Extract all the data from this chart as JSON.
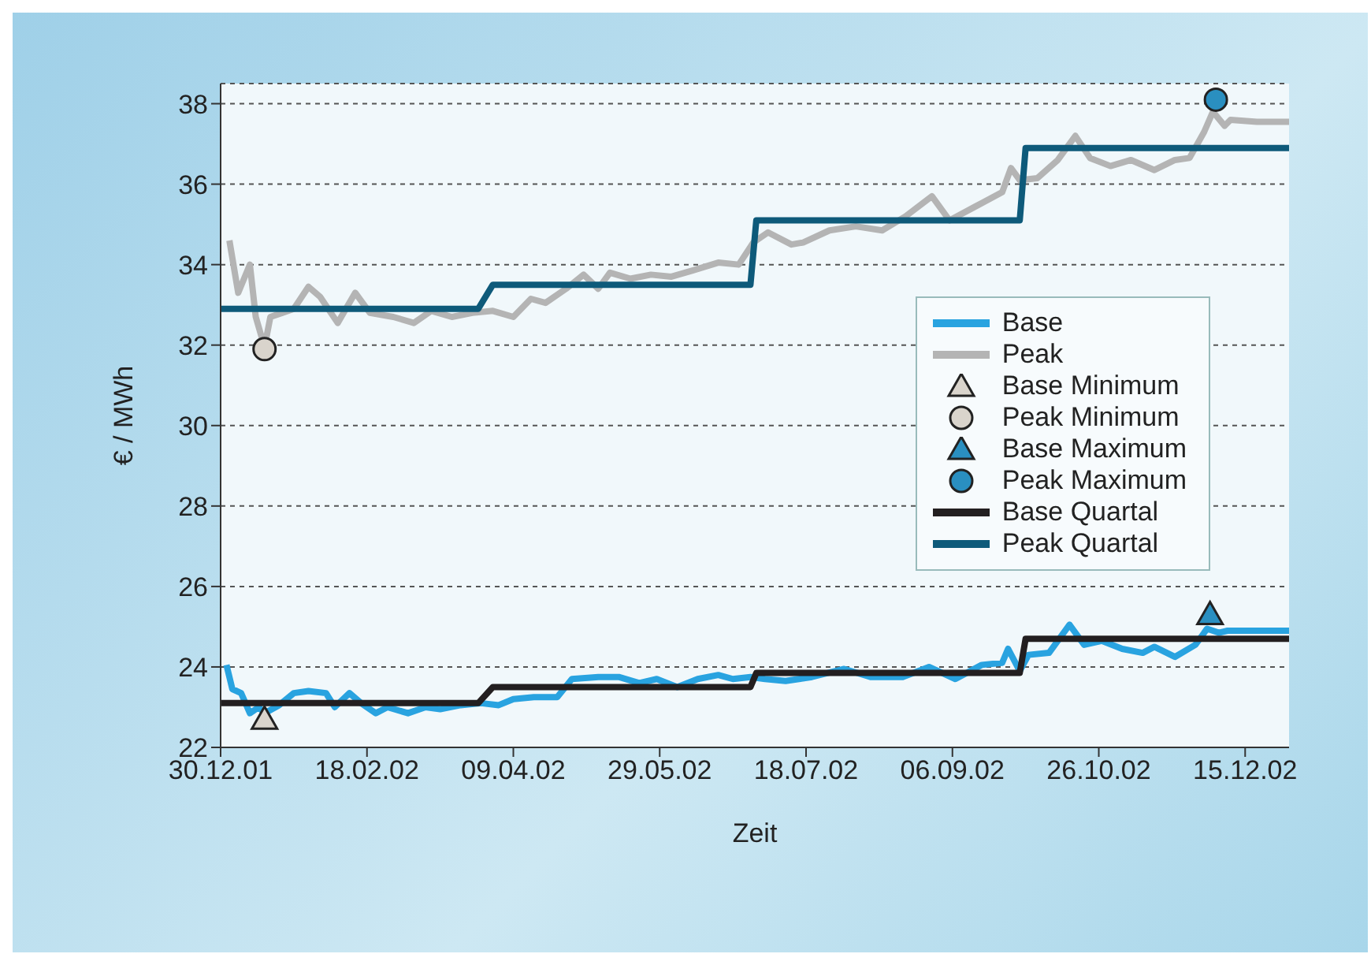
{
  "chart_data": {
    "type": "line",
    "xlabel": "Zeit",
    "ylabel": "€ / MWh",
    "xlim": [
      "2001-12-30",
      "2002-12-30"
    ],
    "xticks": [
      {
        "value": "2001-12-30",
        "label": "30.12.01"
      },
      {
        "value": "2002-02-18",
        "label": "18.02.02"
      },
      {
        "value": "2002-04-09",
        "label": "09.04.02"
      },
      {
        "value": "2002-05-29",
        "label": "29.05.02"
      },
      {
        "value": "2002-07-18",
        "label": "18.07.02"
      },
      {
        "value": "2002-09-06",
        "label": "06.09.02"
      },
      {
        "value": "2002-10-26",
        "label": "26.10.02"
      },
      {
        "value": "2002-12-15",
        "label": "15.12.02"
      }
    ],
    "ylim": [
      22,
      38.5
    ],
    "yticks": [
      22,
      24,
      26,
      28,
      30,
      32,
      34,
      36,
      38
    ],
    "grid": "y",
    "legend": "right",
    "marker": "none",
    "line_style": "solid",
    "series": [
      {
        "name": "Base",
        "type": "line",
        "color": "#29a3e0",
        "x": [
          "2002-01-01",
          "2002-01-03",
          "2002-01-06",
          "2002-01-09",
          "2002-01-12",
          "2002-01-14",
          "2002-01-19",
          "2002-01-24",
          "2002-01-29",
          "2002-02-04",
          "2002-02-07",
          "2002-02-12",
          "2002-02-16",
          "2002-02-21",
          "2002-02-25",
          "2002-03-04",
          "2002-03-10",
          "2002-03-15",
          "2002-03-22",
          "2002-03-29",
          "2002-04-04",
          "2002-04-09",
          "2002-04-16",
          "2002-04-24",
          "2002-04-29",
          "2002-05-08",
          "2002-05-15",
          "2002-05-22",
          "2002-05-28",
          "2002-06-04",
          "2002-06-11",
          "2002-06-18",
          "2002-06-23",
          "2002-06-29",
          "2002-07-04",
          "2002-07-11",
          "2002-07-20",
          "2002-07-31",
          "2002-08-09",
          "2002-08-20",
          "2002-08-29",
          "2002-09-07",
          "2002-09-16",
          "2002-09-23",
          "2002-09-25",
          "2002-09-29",
          "2002-10-02",
          "2002-10-09",
          "2002-10-16",
          "2002-10-21",
          "2002-10-27",
          "2002-11-03",
          "2002-11-10",
          "2002-11-14",
          "2002-11-21",
          "2002-11-28",
          "2002-12-02",
          "2002-12-06",
          "2002-12-09",
          "2002-12-30"
        ],
        "values": [
          24.05,
          23.45,
          23.35,
          22.85,
          23.0,
          22.85,
          23.05,
          23.35,
          23.4,
          23.35,
          23.0,
          23.35,
          23.1,
          22.85,
          23.0,
          22.85,
          23.0,
          22.95,
          23.05,
          23.1,
          23.05,
          23.2,
          23.25,
          23.25,
          23.7,
          23.75,
          23.75,
          23.6,
          23.7,
          23.5,
          23.7,
          23.8,
          23.7,
          23.75,
          23.7,
          23.65,
          23.75,
          23.95,
          23.75,
          23.75,
          24.0,
          23.7,
          24.05,
          24.1,
          24.45,
          23.9,
          24.3,
          24.35,
          25.05,
          24.55,
          24.65,
          24.45,
          24.35,
          24.5,
          24.25,
          24.55,
          24.95,
          24.85,
          24.9,
          24.9
        ]
      },
      {
        "name": "Peak",
        "type": "line",
        "color": "#b4b4b4",
        "x": [
          "2002-01-02",
          "2002-01-05",
          "2002-01-07",
          "2002-01-09",
          "2002-01-11",
          "2002-01-14",
          "2002-01-16",
          "2002-01-20",
          "2002-01-24",
          "2002-01-29",
          "2002-02-02",
          "2002-02-08",
          "2002-02-14",
          "2002-02-19",
          "2002-02-27",
          "2002-03-06",
          "2002-03-12",
          "2002-03-19",
          "2002-03-26",
          "2002-04-02",
          "2002-04-09",
          "2002-04-15",
          "2002-04-20",
          "2002-04-27",
          "2002-05-03",
          "2002-05-08",
          "2002-05-12",
          "2002-05-19",
          "2002-05-26",
          "2002-06-02",
          "2002-06-09",
          "2002-06-18",
          "2002-06-25",
          "2002-06-30",
          "2002-07-05",
          "2002-07-13",
          "2002-07-17",
          "2002-07-26",
          "2002-08-04",
          "2002-08-13",
          "2002-08-21",
          "2002-08-30",
          "2002-09-05",
          "2002-09-14",
          "2002-09-23",
          "2002-09-26",
          "2002-09-29",
          "2002-10-05",
          "2002-10-12",
          "2002-10-18",
          "2002-10-23",
          "2002-10-30",
          "2002-11-06",
          "2002-11-14",
          "2002-11-21",
          "2002-11-26",
          "2002-12-01",
          "2002-12-04",
          "2002-12-08",
          "2002-12-10",
          "2002-12-19",
          "2002-12-30"
        ],
        "values": [
          34.6,
          33.3,
          33.65,
          34.0,
          32.7,
          31.95,
          32.7,
          32.8,
          32.9,
          33.45,
          33.2,
          32.55,
          33.3,
          32.8,
          32.7,
          32.55,
          32.85,
          32.7,
          32.8,
          32.85,
          32.7,
          33.15,
          33.05,
          33.4,
          33.75,
          33.4,
          33.8,
          33.65,
          33.75,
          33.7,
          33.85,
          34.05,
          34.0,
          34.55,
          34.8,
          34.5,
          34.55,
          34.85,
          34.95,
          34.85,
          35.2,
          35.7,
          35.1,
          35.45,
          35.8,
          36.4,
          36.1,
          36.15,
          36.6,
          37.2,
          36.65,
          36.45,
          36.6,
          36.35,
          36.6,
          36.65,
          37.3,
          37.8,
          37.45,
          37.6,
          37.55,
          37.55
        ]
      },
      {
        "name": "Base Minimum",
        "type": "scatter",
        "marker": "triangle",
        "color": "#d9d4cc",
        "x": [
          "2002-01-14"
        ],
        "values": [
          22.7
        ]
      },
      {
        "name": "Peak Minimum",
        "type": "scatter",
        "marker": "circle",
        "color": "#d9d4cc",
        "x": [
          "2002-01-14"
        ],
        "values": [
          31.9
        ]
      },
      {
        "name": "Base Maximum",
        "type": "scatter",
        "marker": "triangle",
        "color": "#2a8fc0",
        "x": [
          "2002-12-03"
        ],
        "values": [
          25.3
        ]
      },
      {
        "name": "Peak Maximum",
        "type": "scatter",
        "marker": "circle",
        "color": "#2a8fc0",
        "x": [
          "2002-12-05"
        ],
        "values": [
          38.1
        ]
      },
      {
        "name": "Base Quartal",
        "type": "line",
        "color": "#231f20",
        "x": [
          "2001-12-30",
          "2002-03-28",
          "2002-04-02",
          "2002-06-29",
          "2002-07-01",
          "2002-09-29",
          "2002-10-01",
          "2002-12-30"
        ],
        "values": [
          23.1,
          23.1,
          23.5,
          23.5,
          23.85,
          23.85,
          24.7,
          24.7
        ]
      },
      {
        "name": "Peak Quartal",
        "type": "line",
        "color": "#0e5a7a",
        "x": [
          "2001-12-30",
          "2002-03-28",
          "2002-04-02",
          "2002-06-29",
          "2002-07-01",
          "2002-09-29",
          "2002-10-01",
          "2002-12-30"
        ],
        "values": [
          32.9,
          32.9,
          33.5,
          33.5,
          35.1,
          35.1,
          36.9,
          36.9
        ]
      }
    ]
  }
}
